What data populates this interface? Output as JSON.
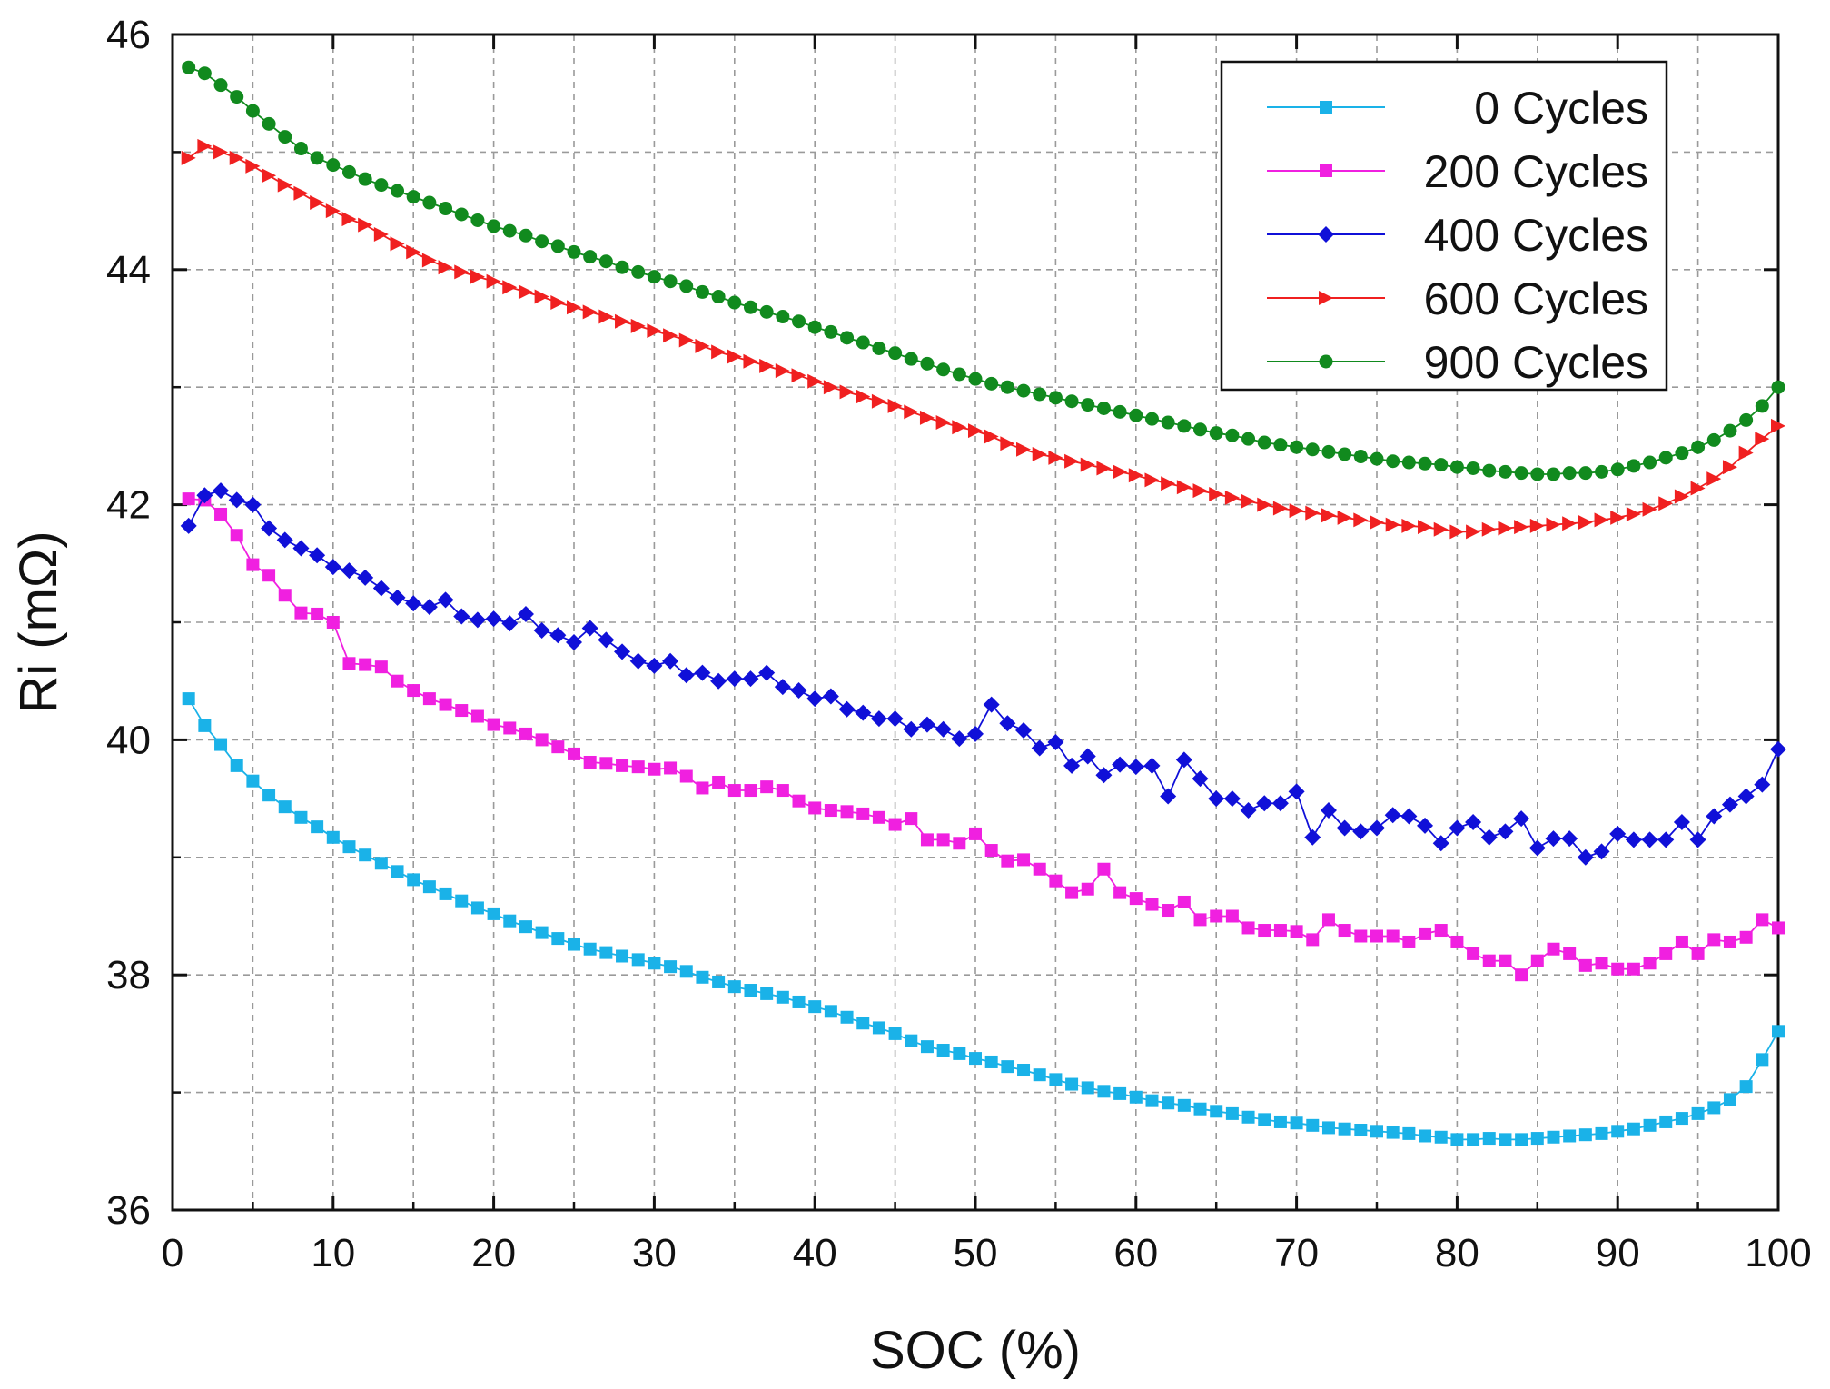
{
  "chart_data": {
    "type": "line",
    "title": "",
    "xlabel": "SOC (%)",
    "ylabel": "Ri (mΩ)",
    "xlim": [
      0,
      100
    ],
    "ylim": [
      36,
      46
    ],
    "xticks": [
      0,
      10,
      20,
      30,
      40,
      50,
      60,
      70,
      80,
      90,
      100
    ],
    "yticks": [
      36,
      38,
      40,
      42,
      44,
      46
    ],
    "grid": true,
    "legend_position": "top-right",
    "series": [
      {
        "name": "0 Cycles",
        "color": "#1ab2e8",
        "marker": "square",
        "x": [
          1,
          2,
          3,
          4,
          5,
          6,
          7,
          8,
          9,
          10,
          11,
          12,
          13,
          14,
          15,
          16,
          17,
          18,
          19,
          20,
          21,
          22,
          23,
          24,
          25,
          26,
          27,
          28,
          29,
          30,
          31,
          32,
          33,
          34,
          35,
          36,
          37,
          38,
          39,
          40,
          41,
          42,
          43,
          44,
          45,
          46,
          47,
          48,
          49,
          50,
          51,
          52,
          53,
          54,
          55,
          56,
          57,
          58,
          59,
          60,
          61,
          62,
          63,
          64,
          65,
          66,
          67,
          68,
          69,
          70,
          71,
          72,
          73,
          74,
          75,
          76,
          77,
          78,
          79,
          80,
          81,
          82,
          83,
          84,
          85,
          86,
          87,
          88,
          89,
          90,
          91,
          92,
          93,
          94,
          95,
          96,
          97,
          98,
          99,
          100
        ],
        "values": [
          40.35,
          40.12,
          39.96,
          39.78,
          39.65,
          39.53,
          39.43,
          39.34,
          39.26,
          39.17,
          39.09,
          39.02,
          38.95,
          38.88,
          38.81,
          38.75,
          38.69,
          38.63,
          38.57,
          38.52,
          38.46,
          38.41,
          38.36,
          38.31,
          38.26,
          38.22,
          38.19,
          38.16,
          38.13,
          38.1,
          38.07,
          38.03,
          37.98,
          37.94,
          37.9,
          37.87,
          37.84,
          37.81,
          37.77,
          37.73,
          37.69,
          37.64,
          37.59,
          37.55,
          37.5,
          37.44,
          37.39,
          37.36,
          37.33,
          37.29,
          37.26,
          37.22,
          37.19,
          37.15,
          37.11,
          37.07,
          37.04,
          37.01,
          36.99,
          36.96,
          36.93,
          36.91,
          36.89,
          36.86,
          36.84,
          36.82,
          36.79,
          36.77,
          36.75,
          36.74,
          36.72,
          36.7,
          36.69,
          36.68,
          36.67,
          36.66,
          36.65,
          36.63,
          36.62,
          36.6,
          36.6,
          36.61,
          36.6,
          36.6,
          36.61,
          36.62,
          36.63,
          36.64,
          36.65,
          36.67,
          36.69,
          36.72,
          36.75,
          36.78,
          36.82,
          36.87,
          36.94,
          37.05,
          37.28,
          37.52
        ]
      },
      {
        "name": "200 Cycles",
        "color": "#f020e0",
        "marker": "square",
        "x": [
          1,
          2,
          3,
          4,
          5,
          6,
          7,
          8,
          9,
          10,
          11,
          12,
          13,
          14,
          15,
          16,
          17,
          18,
          19,
          20,
          21,
          22,
          23,
          24,
          25,
          26,
          27,
          28,
          29,
          30,
          31,
          32,
          33,
          34,
          35,
          36,
          37,
          38,
          39,
          40,
          41,
          42,
          43,
          44,
          45,
          46,
          47,
          48,
          49,
          50,
          51,
          52,
          53,
          54,
          55,
          56,
          57,
          58,
          59,
          60,
          61,
          62,
          63,
          64,
          65,
          66,
          67,
          68,
          69,
          70,
          71,
          72,
          73,
          74,
          75,
          76,
          77,
          78,
          79,
          80,
          81,
          82,
          83,
          84,
          85,
          86,
          87,
          88,
          89,
          90,
          91,
          92,
          93,
          94,
          95,
          96,
          97,
          98,
          99,
          100
        ],
        "values": [
          42.05,
          42.04,
          41.92,
          41.74,
          41.49,
          41.4,
          41.23,
          41.08,
          41.07,
          41.0,
          40.65,
          40.64,
          40.62,
          40.5,
          40.42,
          40.35,
          40.3,
          40.25,
          40.2,
          40.13,
          40.1,
          40.05,
          40.0,
          39.94,
          39.88,
          39.81,
          39.8,
          39.78,
          39.77,
          39.75,
          39.76,
          39.69,
          39.59,
          39.64,
          39.57,
          39.57,
          39.6,
          39.57,
          39.48,
          39.42,
          39.4,
          39.39,
          39.37,
          39.34,
          39.28,
          39.33,
          39.15,
          39.15,
          39.12,
          39.2,
          39.06,
          38.97,
          38.98,
          38.9,
          38.8,
          38.7,
          38.73,
          38.9,
          38.7,
          38.65,
          38.6,
          38.55,
          38.62,
          38.47,
          38.5,
          38.5,
          38.4,
          38.38,
          38.38,
          38.37,
          38.3,
          38.47,
          38.38,
          38.33,
          38.33,
          38.33,
          38.28,
          38.35,
          38.38,
          38.28,
          38.18,
          38.12,
          38.12,
          38.0,
          38.12,
          38.22,
          38.18,
          38.08,
          38.1,
          38.05,
          38.05,
          38.1,
          38.18,
          38.28,
          38.18,
          38.3,
          38.28,
          38.32,
          38.47,
          38.4
        ]
      },
      {
        "name": "400 Cycles",
        "color": "#1010d8",
        "marker": "diamond",
        "x": [
          1,
          2,
          3,
          4,
          5,
          6,
          7,
          8,
          9,
          10,
          11,
          12,
          13,
          14,
          15,
          16,
          17,
          18,
          19,
          20,
          21,
          22,
          23,
          24,
          25,
          26,
          27,
          28,
          29,
          30,
          31,
          32,
          33,
          34,
          35,
          36,
          37,
          38,
          39,
          40,
          41,
          42,
          43,
          44,
          45,
          46,
          47,
          48,
          49,
          50,
          51,
          52,
          53,
          54,
          55,
          56,
          57,
          58,
          59,
          60,
          61,
          62,
          63,
          64,
          65,
          66,
          67,
          68,
          69,
          70,
          71,
          72,
          73,
          74,
          75,
          76,
          77,
          78,
          79,
          80,
          81,
          82,
          83,
          84,
          85,
          86,
          87,
          88,
          89,
          90,
          91,
          92,
          93,
          94,
          95,
          96,
          97,
          98,
          99,
          100
        ],
        "values": [
          41.82,
          42.08,
          42.12,
          42.04,
          42.0,
          41.8,
          41.7,
          41.63,
          41.57,
          41.47,
          41.44,
          41.38,
          41.29,
          41.21,
          41.16,
          41.13,
          41.19,
          41.05,
          41.02,
          41.03,
          40.99,
          41.07,
          40.93,
          40.89,
          40.83,
          40.95,
          40.85,
          40.75,
          40.67,
          40.63,
          40.67,
          40.55,
          40.57,
          40.5,
          40.52,
          40.52,
          40.57,
          40.45,
          40.42,
          40.35,
          40.37,
          40.26,
          40.23,
          40.18,
          40.18,
          40.09,
          40.13,
          40.09,
          40.01,
          40.05,
          40.3,
          40.14,
          40.08,
          39.93,
          39.98,
          39.78,
          39.86,
          39.7,
          39.79,
          39.77,
          39.78,
          39.52,
          39.83,
          39.67,
          39.5,
          39.5,
          39.4,
          39.46,
          39.46,
          39.56,
          39.17,
          39.4,
          39.25,
          39.22,
          39.25,
          39.36,
          39.35,
          39.27,
          39.12,
          39.25,
          39.3,
          39.17,
          39.22,
          39.33,
          39.08,
          39.16,
          39.16,
          39.0,
          39.05,
          39.2,
          39.15,
          39.15,
          39.15,
          39.3,
          39.15,
          39.35,
          39.45,
          39.52,
          39.62,
          39.92
        ]
      },
      {
        "name": "600 Cycles",
        "color": "#f02020",
        "marker": "triangle-right",
        "x": [
          1,
          2,
          3,
          4,
          5,
          6,
          7,
          8,
          9,
          10,
          11,
          12,
          13,
          14,
          15,
          16,
          17,
          18,
          19,
          20,
          21,
          22,
          23,
          24,
          25,
          26,
          27,
          28,
          29,
          30,
          31,
          32,
          33,
          34,
          35,
          36,
          37,
          38,
          39,
          40,
          41,
          42,
          43,
          44,
          45,
          46,
          47,
          48,
          49,
          50,
          51,
          52,
          53,
          54,
          55,
          56,
          57,
          58,
          59,
          60,
          61,
          62,
          63,
          64,
          65,
          66,
          67,
          68,
          69,
          70,
          71,
          72,
          73,
          74,
          75,
          76,
          77,
          78,
          79,
          80,
          81,
          82,
          83,
          84,
          85,
          86,
          87,
          88,
          89,
          90,
          91,
          92,
          93,
          94,
          95,
          96,
          97,
          98,
          99,
          100
        ],
        "values": [
          44.95,
          45.05,
          45.0,
          44.95,
          44.88,
          44.8,
          44.72,
          44.65,
          44.57,
          44.5,
          44.43,
          44.38,
          44.3,
          44.22,
          44.15,
          44.08,
          44.02,
          43.98,
          43.94,
          43.9,
          43.85,
          43.81,
          43.77,
          43.72,
          43.68,
          43.64,
          43.6,
          43.56,
          43.52,
          43.48,
          43.44,
          43.4,
          43.35,
          43.3,
          43.26,
          43.22,
          43.18,
          43.14,
          43.1,
          43.05,
          43.0,
          42.96,
          42.92,
          42.88,
          42.84,
          42.79,
          42.74,
          42.7,
          42.66,
          42.63,
          42.58,
          42.52,
          42.47,
          42.43,
          42.4,
          42.37,
          42.34,
          42.31,
          42.28,
          42.25,
          42.21,
          42.18,
          42.15,
          42.12,
          42.09,
          42.06,
          42.03,
          42.0,
          41.97,
          41.95,
          41.93,
          41.91,
          41.89,
          41.87,
          41.85,
          41.83,
          41.82,
          41.81,
          41.79,
          41.77,
          41.77,
          41.79,
          41.8,
          41.81,
          41.82,
          41.83,
          41.84,
          41.85,
          41.87,
          41.89,
          41.92,
          41.96,
          42.01,
          42.07,
          42.14,
          42.22,
          42.32,
          42.44,
          42.56,
          42.67
        ]
      },
      {
        "name": "900 Cycles",
        "color": "#118a1e",
        "marker": "circle",
        "x": [
          1,
          2,
          3,
          4,
          5,
          6,
          7,
          8,
          9,
          10,
          11,
          12,
          13,
          14,
          15,
          16,
          17,
          18,
          19,
          20,
          21,
          22,
          23,
          24,
          25,
          26,
          27,
          28,
          29,
          30,
          31,
          32,
          33,
          34,
          35,
          36,
          37,
          38,
          39,
          40,
          41,
          42,
          43,
          44,
          45,
          46,
          47,
          48,
          49,
          50,
          51,
          52,
          53,
          54,
          55,
          56,
          57,
          58,
          59,
          60,
          61,
          62,
          63,
          64,
          65,
          66,
          67,
          68,
          69,
          70,
          71,
          72,
          73,
          74,
          75,
          76,
          77,
          78,
          79,
          80,
          81,
          82,
          83,
          84,
          85,
          86,
          87,
          88,
          89,
          90,
          91,
          92,
          93,
          94,
          95,
          96,
          97,
          98,
          99,
          100
        ],
        "values": [
          45.72,
          45.67,
          45.57,
          45.47,
          45.35,
          45.24,
          45.13,
          45.03,
          44.95,
          44.89,
          44.83,
          44.77,
          44.72,
          44.67,
          44.62,
          44.57,
          44.52,
          44.47,
          44.42,
          44.37,
          44.33,
          44.29,
          44.24,
          44.2,
          44.15,
          44.11,
          44.07,
          44.02,
          43.98,
          43.94,
          43.9,
          43.86,
          43.81,
          43.77,
          43.72,
          43.68,
          43.64,
          43.6,
          43.56,
          43.51,
          43.47,
          43.42,
          43.38,
          43.33,
          43.29,
          43.24,
          43.2,
          43.15,
          43.11,
          43.07,
          43.03,
          43.0,
          42.97,
          42.94,
          42.91,
          42.88,
          42.85,
          42.82,
          42.79,
          42.76,
          42.73,
          42.7,
          42.67,
          42.64,
          42.61,
          42.59,
          42.56,
          42.53,
          42.51,
          42.49,
          42.47,
          42.45,
          42.43,
          42.41,
          42.39,
          42.37,
          42.36,
          42.35,
          42.34,
          42.32,
          42.31,
          42.29,
          42.28,
          42.27,
          42.26,
          42.26,
          42.27,
          42.27,
          42.28,
          42.3,
          42.33,
          42.36,
          42.4,
          42.44,
          42.49,
          42.55,
          42.63,
          42.72,
          42.84,
          43.0
        ]
      }
    ]
  }
}
